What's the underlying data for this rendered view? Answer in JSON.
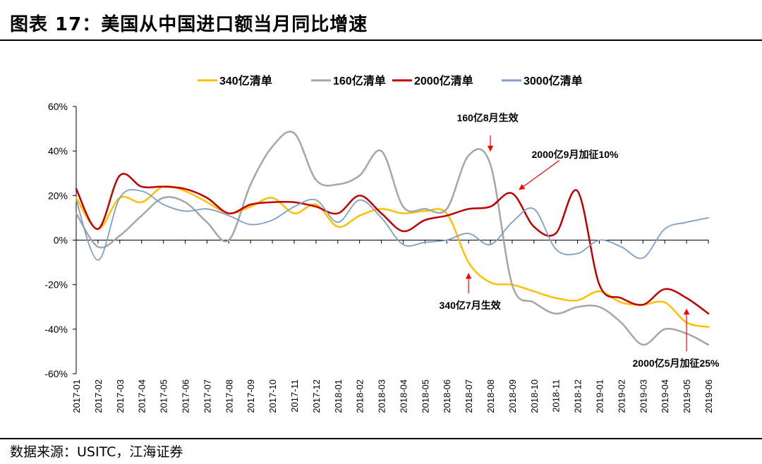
{
  "figure": {
    "title": "图表 17：美国从中国进口额当月同比增速",
    "source": "数据来源：USITC，江海证券"
  },
  "chart_data": {
    "type": "line",
    "title": "",
    "xlabel": "",
    "ylabel": "",
    "ylim": [
      -60,
      60
    ],
    "yticks": [
      -60,
      -40,
      -20,
      0,
      20,
      40,
      60
    ],
    "ytick_labels": [
      "-60%",
      "-40%",
      "-20%",
      "0%",
      "20%",
      "40%",
      "60%"
    ],
    "grid": false,
    "legend_position": "top",
    "categories": [
      "2017-01",
      "2017-02",
      "2017-03",
      "2017-04",
      "2017-05",
      "2017-06",
      "2017-07",
      "2017-08",
      "2017-09",
      "2017-10",
      "2017-11",
      "2017-12",
      "2018-01",
      "2018-02",
      "2018-03",
      "2018-04",
      "2018-05",
      "2018-06",
      "2018-07",
      "2018-08",
      "2018-09",
      "2018-10",
      "2018-11",
      "2018-12",
      "2019-01",
      "2019-02",
      "2019-03",
      "2019-04",
      "2019-05",
      "2019-06"
    ],
    "series": [
      {
        "name": "340亿清单",
        "color": "#FFC000",
        "width": 2.5,
        "values": [
          19,
          5,
          19,
          17,
          24,
          22,
          17,
          12,
          15,
          19,
          12,
          16,
          6,
          11,
          14,
          12,
          13,
          12,
          -10,
          -19,
          -20,
          -23,
          -26,
          -27,
          -23,
          -28,
          -29,
          -28,
          -37,
          -39
        ]
      },
      {
        "name": "160亿清单",
        "color": "#A6A6A6",
        "width": 2.5,
        "values": [
          12,
          -3,
          2,
          11,
          19,
          17,
          8,
          0,
          25,
          42,
          48,
          27,
          25,
          29,
          40,
          15,
          14,
          14,
          38,
          34,
          -20,
          -28,
          -33,
          -30,
          -30,
          -37,
          -47,
          -40,
          -42,
          -47
        ]
      },
      {
        "name": "2000亿清单",
        "color": "#C00000",
        "width": 2.5,
        "values": [
          23,
          5,
          29,
          24,
          24,
          23,
          19,
          12,
          16,
          17,
          17,
          15,
          12,
          20,
          12,
          4,
          9,
          11,
          14,
          15,
          21,
          6,
          3,
          22,
          -20,
          -26,
          -29,
          -22,
          -26,
          -33
        ]
      },
      {
        "name": "3000亿清单",
        "color": "#7F9EC9",
        "width": 1.8,
        "values": [
          18,
          -9,
          19,
          22,
          16,
          13,
          14,
          11,
          7,
          9,
          15,
          18,
          8,
          18,
          10,
          -2,
          -1,
          0,
          3,
          -2,
          8,
          14,
          -4,
          -6,
          0,
          -3,
          -8,
          5,
          8,
          10
        ]
      }
    ],
    "annotations": [
      {
        "text": "160亿8月生效",
        "x": "2018-08",
        "y": 40,
        "from_y": 47
      },
      {
        "text": "2000亿9月加征10%",
        "x": "2018-09",
        "y": 23,
        "text_x": "2018-11",
        "text_y": 38
      },
      {
        "text": "340亿7月生效",
        "x": "2018-07",
        "y": -15,
        "from_y": -24
      },
      {
        "text": "2000亿5月加征25%",
        "x": "2019-05",
        "y": -31,
        "from_y": -50
      }
    ]
  }
}
